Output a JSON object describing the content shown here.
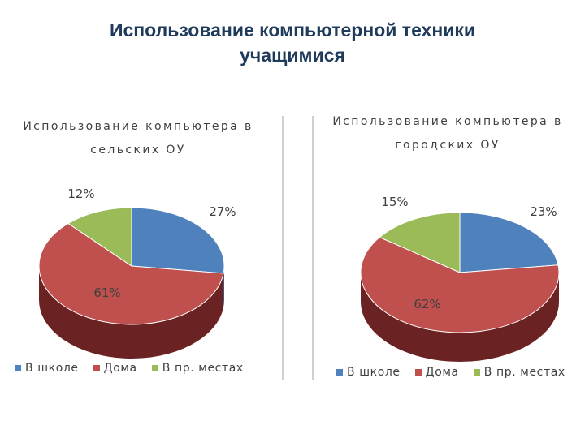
{
  "slide": {
    "title_line1": "Использование компьютерной техники",
    "title_line2": "учащимися"
  },
  "chart_data": [
    {
      "type": "pie",
      "title_line1": "Использование компьютера в",
      "title_line2": "сельских ОУ",
      "categories": [
        "В школе",
        "Дома",
        "В пр. местах"
      ],
      "values": [
        27,
        61,
        12
      ],
      "data_labels": [
        "27%",
        "61%",
        "12%"
      ],
      "colors": [
        "#4f81bd",
        "#c0504d",
        "#9bbb59"
      ],
      "side_colors": [
        "#2c4d77",
        "#6b2223",
        "#5e7530"
      ],
      "legend_position": "bottom"
    },
    {
      "type": "pie",
      "title_line1": "Использование компьютера в",
      "title_line2": "городских ОУ",
      "categories": [
        "В школе",
        "Дома",
        "В пр. местах"
      ],
      "values": [
        23,
        62,
        15
      ],
      "data_labels": [
        "23%",
        "62%",
        "15%"
      ],
      "colors": [
        "#4f81bd",
        "#c0504d",
        "#9bbb59"
      ],
      "side_colors": [
        "#2c4d77",
        "#6b2223",
        "#5e7530"
      ],
      "legend_position": "bottom"
    }
  ]
}
